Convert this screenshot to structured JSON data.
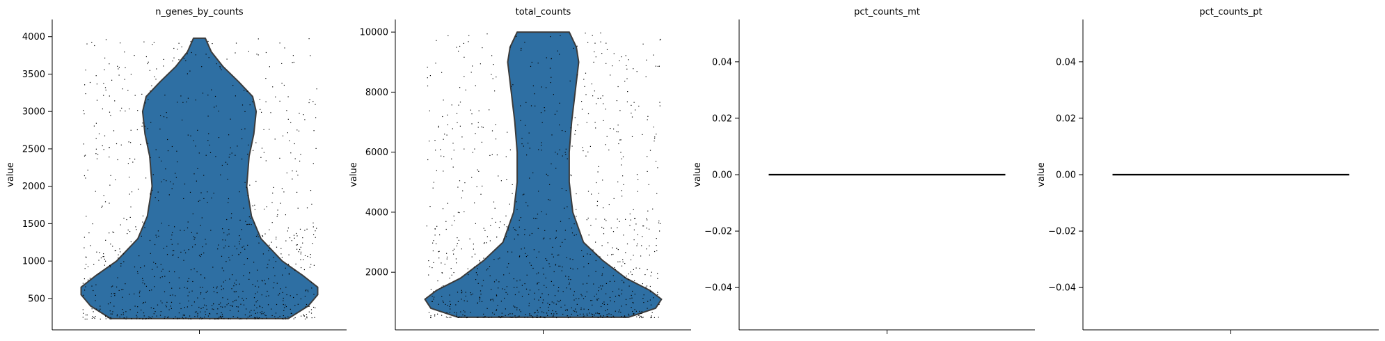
{
  "chart_data": [
    {
      "type": "violin",
      "title": "n_genes_by_counts",
      "ylabel": "value",
      "ylim": [
        80,
        4230
      ],
      "yticks": [
        500,
        1000,
        1500,
        2000,
        2500,
        3000,
        3500,
        4000
      ],
      "violin_range": [
        230,
        3980
      ],
      "density": [
        [
          230,
          0.75
        ],
        [
          400,
          0.92
        ],
        [
          550,
          1.0
        ],
        [
          650,
          1.0
        ],
        [
          800,
          0.88
        ],
        [
          1000,
          0.7
        ],
        [
          1300,
          0.52
        ],
        [
          1600,
          0.44
        ],
        [
          2000,
          0.4
        ],
        [
          2400,
          0.42
        ],
        [
          2700,
          0.46
        ],
        [
          3000,
          0.48
        ],
        [
          3200,
          0.45
        ],
        [
          3400,
          0.33
        ],
        [
          3600,
          0.2
        ],
        [
          3800,
          0.1
        ],
        [
          3980,
          0.05
        ]
      ],
      "points": {
        "n": 1000,
        "min": 230,
        "max": 3980
      }
    },
    {
      "type": "violin",
      "title": "total_counts",
      "ylabel": "value",
      "ylim": [
        80,
        10420
      ],
      "yticks": [
        2000,
        4000,
        6000,
        8000,
        10000
      ],
      "violin_range": [
        500,
        10000
      ],
      "density": [
        [
          500,
          0.72
        ],
        [
          800,
          0.95
        ],
        [
          1100,
          1.0
        ],
        [
          1400,
          0.9
        ],
        [
          1800,
          0.7
        ],
        [
          2400,
          0.5
        ],
        [
          3000,
          0.34
        ],
        [
          4000,
          0.25
        ],
        [
          5000,
          0.22
        ],
        [
          6000,
          0.22
        ],
        [
          7000,
          0.24
        ],
        [
          8000,
          0.27
        ],
        [
          9000,
          0.3
        ],
        [
          9500,
          0.28
        ],
        [
          10000,
          0.22
        ]
      ],
      "points": {
        "n": 1000,
        "min": 500,
        "max": 10000
      }
    },
    {
      "type": "violin",
      "title": "pct_counts_mt",
      "ylabel": "value",
      "ylim": [
        -0.055,
        0.055
      ],
      "yticks": [
        -0.04,
        -0.02,
        0.0,
        0.02,
        0.04
      ],
      "tick_labels": [
        "−0.04",
        "−0.02",
        "0.00",
        "0.02",
        "0.04"
      ],
      "values": 0.0
    },
    {
      "type": "violin",
      "title": "pct_counts_pt",
      "ylabel": "value",
      "ylim": [
        -0.055,
        0.055
      ],
      "yticks": [
        -0.04,
        -0.02,
        0.0,
        0.02,
        0.04
      ],
      "tick_labels": [
        "−0.04",
        "−0.02",
        "0.00",
        "0.02",
        "0.04"
      ],
      "values": 0.0
    }
  ],
  "colors": {
    "violin_fill": "#2e6fa3",
    "violin_edge": "#3b3b3b",
    "points": "#000000"
  }
}
